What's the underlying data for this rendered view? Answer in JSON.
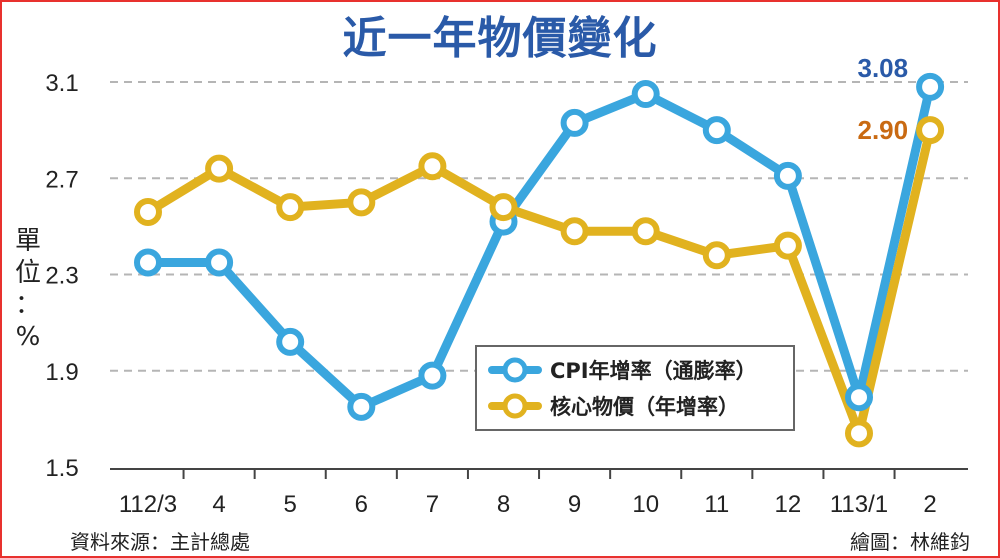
{
  "chart_data": {
    "type": "line",
    "title": "近一年物價變化",
    "ylabel": "單位：%",
    "categories": [
      "112/3",
      "4",
      "5",
      "6",
      "7",
      "8",
      "9",
      "10",
      "11",
      "12",
      "113/1",
      "2"
    ],
    "ylim": [
      1.5,
      3.1
    ],
    "yticks": [
      "3.1",
      "2.7",
      "2.3",
      "1.9",
      "1.5"
    ],
    "grid": true,
    "legend_position": "center-bottom",
    "series": [
      {
        "name": "CPI年增率（通膨率）",
        "color": "#3aa6de",
        "values": [
          2.35,
          2.35,
          2.02,
          1.75,
          1.88,
          2.52,
          2.93,
          3.05,
          2.9,
          2.71,
          1.79,
          3.08
        ]
      },
      {
        "name": "核心物價（年增率）",
        "color": "#e1b21f",
        "values": [
          2.56,
          2.74,
          2.58,
          2.6,
          2.75,
          2.58,
          2.48,
          2.48,
          2.38,
          2.42,
          1.64,
          2.9
        ]
      }
    ],
    "annotations": [
      {
        "series": 0,
        "index": 11,
        "text": "3.08",
        "color": "#2a5aa8"
      },
      {
        "series": 1,
        "index": 11,
        "text": "2.90",
        "color": "#c96a12"
      }
    ]
  },
  "footer": {
    "source": "資料來源：主計總處",
    "credit": "繪圖：林維鈞"
  }
}
